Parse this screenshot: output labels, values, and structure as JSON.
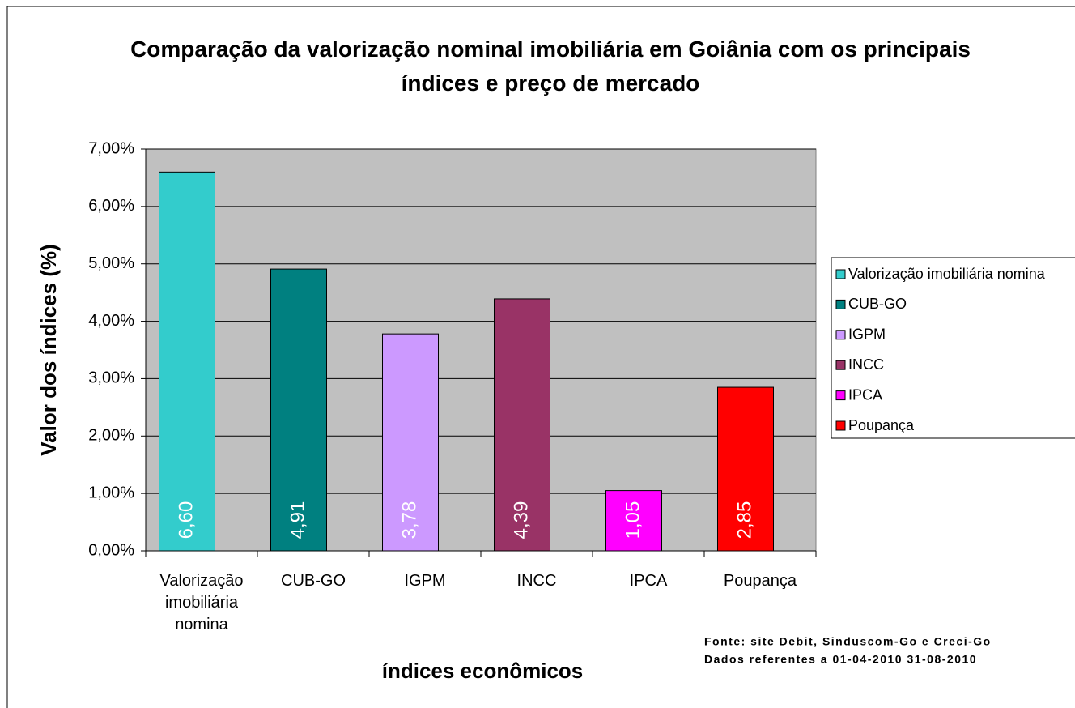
{
  "chart_data": {
    "type": "bar",
    "title": "Comparação da valorização nominal imobiliária em Goiânia com os principais índices e preço de mercado",
    "xlabel": "índices econômicos",
    "ylabel": "Valor dos índices (%)",
    "categories": [
      "Valorização imobiliária nomina",
      "CUB-GO",
      "IGPM",
      "INCC",
      "IPCA",
      "Poupança"
    ],
    "values": [
      6.6,
      4.91,
      3.78,
      4.39,
      1.05,
      2.85
    ],
    "value_labels": [
      "6,60",
      "4,91",
      "3,78",
      "4,39",
      "1,05",
      "2,85"
    ],
    "colors": [
      "#33cccc",
      "#008080",
      "#cc99ff",
      "#993366",
      "#ff00ff",
      "#ff0000"
    ],
    "ylim": [
      0,
      7
    ],
    "yticks": [
      {
        "value": 0,
        "label": "0,00%"
      },
      {
        "value": 1,
        "label": "1,00%"
      },
      {
        "value": 2,
        "label": "2,00%"
      },
      {
        "value": 3,
        "label": "3,00%"
      },
      {
        "value": 4,
        "label": "4,00%"
      },
      {
        "value": 5,
        "label": "5,00%"
      },
      {
        "value": 6,
        "label": "6,00%"
      },
      {
        "value": 7,
        "label": "7,00%"
      }
    ],
    "grid": true,
    "legend": "right",
    "notes": [
      "Fonte: site Debit, Sinduscom-Go e Creci-Go",
      "Dados referentes a 01-04-2010 31-08-2010"
    ]
  }
}
